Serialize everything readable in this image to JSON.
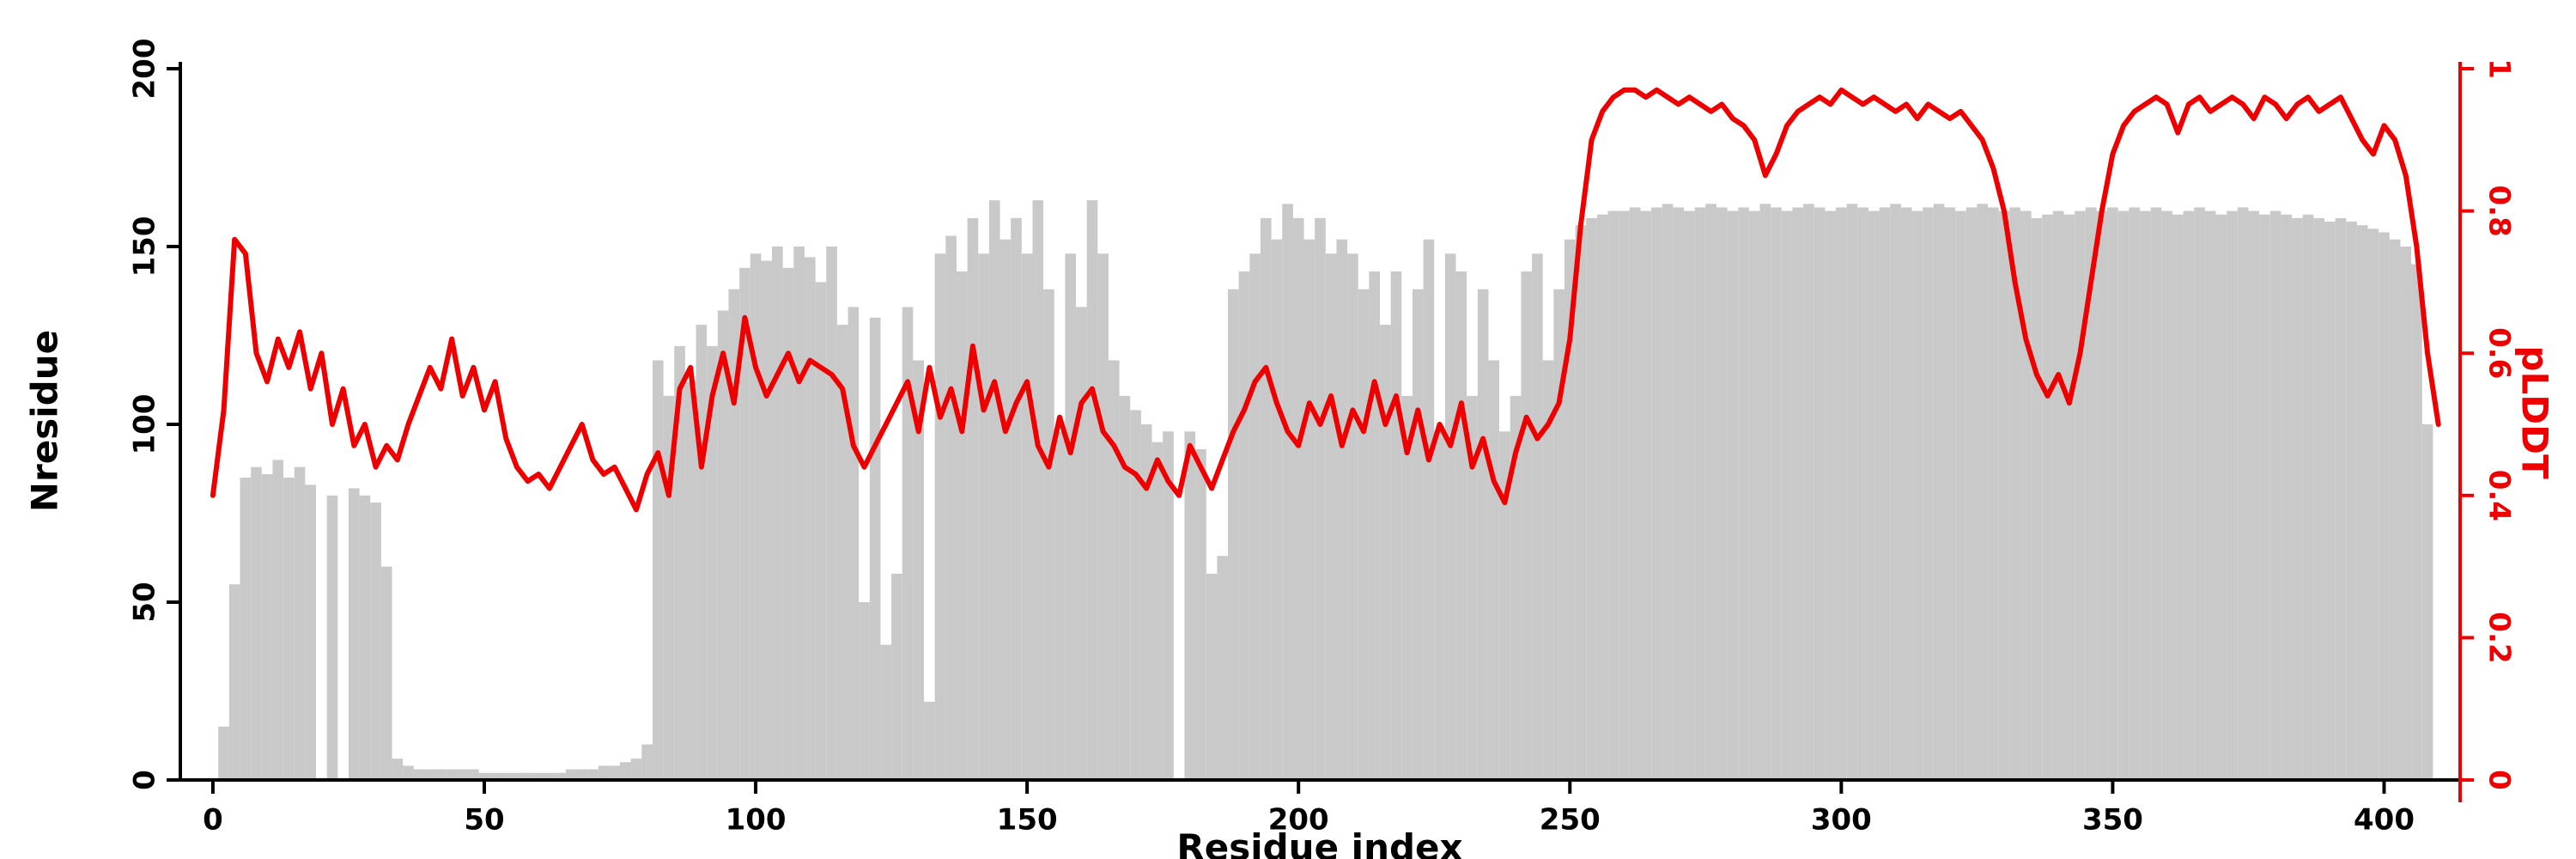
{
  "figure": {
    "background": "#ffffff"
  },
  "chart_data": {
    "type": "bar",
    "subtype": "bar-with-line-overlay-dual-axis",
    "title": "",
    "xlabel": "Residue index",
    "ylabel_left": "Nresidue",
    "ylabel_right": "pLDDT",
    "grid": false,
    "legend": "none",
    "axis_color": "#000000",
    "xlim": [
      -6,
      414
    ],
    "x": {
      "start": 0,
      "step": 2,
      "count": 206
    },
    "x_ticks": [
      0,
      50,
      100,
      150,
      200,
      250,
      300,
      350,
      400
    ],
    "series": [
      {
        "name": "Nresidue",
        "render": "bar",
        "axis": "left",
        "color": "#c9c9c9",
        "ylim": [
          0,
          200
        ],
        "ticks": [
          0,
          50,
          100,
          150,
          200
        ],
        "tick_labels": [
          "0",
          "50",
          "100",
          "150",
          "200"
        ],
        "values": [
          0,
          15,
          55,
          85,
          88,
          86,
          90,
          85,
          88,
          83,
          0,
          80,
          0,
          82,
          80,
          78,
          60,
          6,
          4,
          3,
          3,
          3,
          3,
          3,
          3,
          2,
          2,
          2,
          2,
          2,
          2,
          2,
          2,
          3,
          3,
          3,
          4,
          4,
          5,
          6,
          10,
          118,
          108,
          122,
          112,
          128,
          122,
          132,
          138,
          144,
          148,
          146,
          150,
          144,
          150,
          147,
          140,
          150,
          128,
          133,
          50,
          130,
          38,
          58,
          133,
          118,
          22,
          148,
          153,
          143,
          158,
          148,
          163,
          152,
          158,
          148,
          163,
          138,
          98,
          148,
          133,
          163,
          148,
          118,
          108,
          104,
          100,
          95,
          98,
          0,
          98,
          93,
          58,
          63,
          138,
          143,
          148,
          158,
          152,
          162,
          158,
          152,
          158,
          148,
          152,
          148,
          138,
          143,
          128,
          143,
          108,
          138,
          152,
          98,
          148,
          143,
          108,
          138,
          118,
          98,
          108,
          143,
          148,
          118,
          138,
          152,
          156,
          158,
          159,
          160,
          160,
          161,
          160,
          161,
          162,
          161,
          160,
          161,
          162,
          161,
          160,
          161,
          160,
          162,
          161,
          160,
          161,
          162,
          161,
          160,
          161,
          162,
          161,
          160,
          161,
          162,
          161,
          160,
          161,
          162,
          161,
          160,
          161,
          162,
          161,
          160,
          161,
          160,
          158,
          159,
          160,
          159,
          160,
          161,
          160,
          161,
          160,
          161,
          160,
          161,
          160,
          159,
          160,
          161,
          160,
          159,
          160,
          161,
          160,
          159,
          160,
          159,
          158,
          159,
          158,
          157,
          158,
          157,
          156,
          155,
          154,
          152,
          150,
          145,
          100,
          0
        ]
      },
      {
        "name": "pLDDT",
        "render": "line",
        "axis": "right",
        "color": "#ee0000",
        "ylim": [
          0,
          1
        ],
        "ticks": [
          0,
          0.2,
          0.4,
          0.6,
          0.8,
          1
        ],
        "tick_labels": [
          "0",
          "0.2",
          "0.4",
          "0.6",
          "0.8",
          "1"
        ],
        "values": [
          0.4,
          0.52,
          0.76,
          0.74,
          0.6,
          0.56,
          0.62,
          0.58,
          0.63,
          0.55,
          0.6,
          0.5,
          0.55,
          0.47,
          0.5,
          0.44,
          0.47,
          0.45,
          0.5,
          0.54,
          0.58,
          0.55,
          0.62,
          0.54,
          0.58,
          0.52,
          0.56,
          0.48,
          0.44,
          0.42,
          0.43,
          0.41,
          0.44,
          0.47,
          0.5,
          0.45,
          0.43,
          0.44,
          0.41,
          0.38,
          0.43,
          0.46,
          0.4,
          0.55,
          0.58,
          0.44,
          0.54,
          0.6,
          0.53,
          0.65,
          0.58,
          0.54,
          0.57,
          0.6,
          0.56,
          0.59,
          0.58,
          0.57,
          0.55,
          0.47,
          0.44,
          0.47,
          0.5,
          0.53,
          0.56,
          0.49,
          0.58,
          0.51,
          0.55,
          0.49,
          0.61,
          0.52,
          0.56,
          0.49,
          0.53,
          0.56,
          0.47,
          0.44,
          0.51,
          0.46,
          0.53,
          0.55,
          0.49,
          0.47,
          0.44,
          0.43,
          0.41,
          0.45,
          0.42,
          0.4,
          0.47,
          0.44,
          0.41,
          0.45,
          0.49,
          0.52,
          0.56,
          0.58,
          0.53,
          0.49,
          0.47,
          0.53,
          0.5,
          0.54,
          0.47,
          0.52,
          0.49,
          0.56,
          0.5,
          0.54,
          0.46,
          0.52,
          0.45,
          0.5,
          0.47,
          0.53,
          0.44,
          0.48,
          0.42,
          0.39,
          0.46,
          0.51,
          0.48,
          0.5,
          0.53,
          0.62,
          0.78,
          0.9,
          0.94,
          0.96,
          0.97,
          0.97,
          0.96,
          0.97,
          0.96,
          0.95,
          0.96,
          0.95,
          0.94,
          0.95,
          0.93,
          0.92,
          0.9,
          0.85,
          0.88,
          0.92,
          0.94,
          0.95,
          0.96,
          0.95,
          0.97,
          0.96,
          0.95,
          0.96,
          0.95,
          0.94,
          0.95,
          0.93,
          0.95,
          0.94,
          0.93,
          0.94,
          0.92,
          0.9,
          0.86,
          0.8,
          0.7,
          0.62,
          0.57,
          0.54,
          0.57,
          0.53,
          0.6,
          0.7,
          0.8,
          0.88,
          0.92,
          0.94,
          0.95,
          0.96,
          0.95,
          0.91,
          0.95,
          0.96,
          0.94,
          0.95,
          0.96,
          0.95,
          0.93,
          0.96,
          0.95,
          0.93,
          0.95,
          0.96,
          0.94,
          0.95,
          0.96,
          0.93,
          0.9,
          0.88,
          0.92,
          0.9,
          0.85,
          0.75,
          0.6,
          0.5
        ]
      }
    ]
  }
}
